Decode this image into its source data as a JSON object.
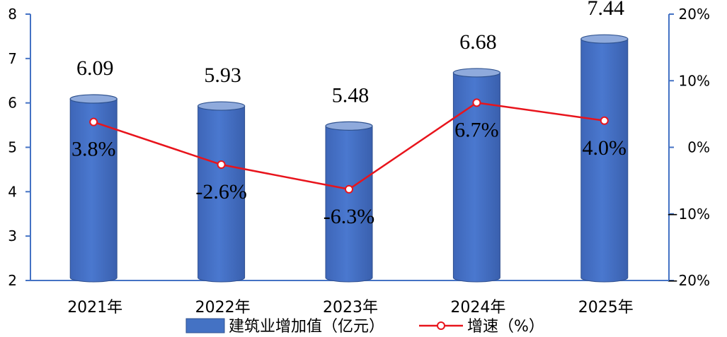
{
  "chart_data": {
    "type": "bar+line",
    "categories": [
      "2021年",
      "2022年",
      "2023年",
      "2024年",
      "2025年"
    ],
    "series": [
      {
        "name": "建筑业增加值（亿元）",
        "type": "bar",
        "axis": "left",
        "color": "#4472C4",
        "values": [
          6.09,
          5.93,
          5.48,
          6.68,
          7.44
        ],
        "labels": [
          "6.09",
          "5.93",
          "5.48",
          "6.68",
          "7.44"
        ]
      },
      {
        "name": "增速（%）",
        "type": "line",
        "axis": "right",
        "color": "#E8141C",
        "values": [
          3.8,
          -2.6,
          -6.3,
          6.7,
          4.0
        ],
        "labels": [
          "3.8%",
          "-2.6%",
          "-6.3%",
          "6.7%",
          "4.0%"
        ]
      }
    ],
    "y_left": {
      "ylim": [
        2,
        8
      ],
      "ticks": [
        "2",
        "3",
        "4",
        "5",
        "6",
        "7",
        "8"
      ]
    },
    "y_right": {
      "ylim": [
        -20,
        20
      ],
      "ticks": [
        "−20%",
        "−10%",
        "0%",
        "10%",
        "20%"
      ],
      "tick_values": [
        -20,
        -10,
        0,
        10,
        20
      ]
    },
    "axis_color": "#4472C4",
    "grid": false,
    "legend_position": "bottom"
  }
}
